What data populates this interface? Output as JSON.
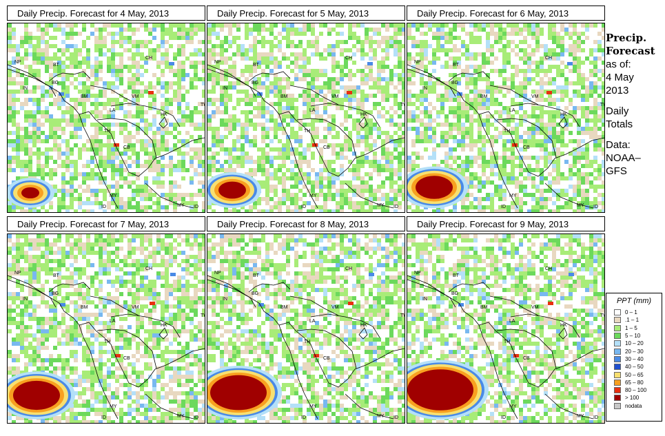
{
  "panels": [
    {
      "title": "Daily Precip. Forecast for  4 May, 2013",
      "seed": 11,
      "storm": 1
    },
    {
      "title": "Daily Precip. Forecast for  5 May, 2013",
      "seed": 23,
      "storm": 2
    },
    {
      "title": "Daily Precip. Forecast for  6 May, 2013",
      "seed": 37,
      "storm": 3
    },
    {
      "title": "Daily Precip. Forecast for  7 May, 2013",
      "seed": 41,
      "storm": 4
    },
    {
      "title": "Daily Precip. Forecast for  8 May, 2013",
      "seed": 53,
      "storm": 5
    },
    {
      "title": "Daily Precip. Forecast for  9 May, 2013",
      "seed": 67,
      "storm": 6
    }
  ],
  "country_labels": [
    "NP",
    "BT",
    "BG",
    "IN",
    "CH",
    "BM",
    "VM",
    "LA",
    "TH",
    "CB",
    "MY",
    "ID",
    "MY",
    "ID",
    "TW",
    "HK"
  ],
  "sidebar": {
    "title_line1": "Precip.",
    "title_line2": "Forecast",
    "asof": "as of:",
    "date_line1": "4 May",
    "date_line2": "2013",
    "daily1": "Daily",
    "daily2": "Totals",
    "data1": "Data:",
    "data2": "NOAA–",
    "data3": "GFS"
  },
  "legend": {
    "title": "PPT (mm)",
    "items": [
      {
        "label": "0 – 1",
        "color": "#ffffff"
      },
      {
        "label": ".1 – 1",
        "color": "#e8d8c0"
      },
      {
        "label": "1 – 5",
        "color": "#a8ec78"
      },
      {
        "label": "5 – 10",
        "color": "#6cd95c"
      },
      {
        "label": "10 – 20",
        "color": "#b4e0f8"
      },
      {
        "label": "20 – 30",
        "color": "#78b8f0"
      },
      {
        "label": "30 – 40",
        "color": "#4a8ae6"
      },
      {
        "label": "40 – 50",
        "color": "#2050d0"
      },
      {
        "label": "50 – 65",
        "color": "#f8e070"
      },
      {
        "label": "65 – 80",
        "color": "#f8a020"
      },
      {
        "label": "80 – 100",
        "color": "#e83010"
      },
      {
        "label": "> 100",
        "color": "#a00000"
      },
      {
        "label": "nodata",
        "color": "#c8c8c8"
      }
    ]
  }
}
